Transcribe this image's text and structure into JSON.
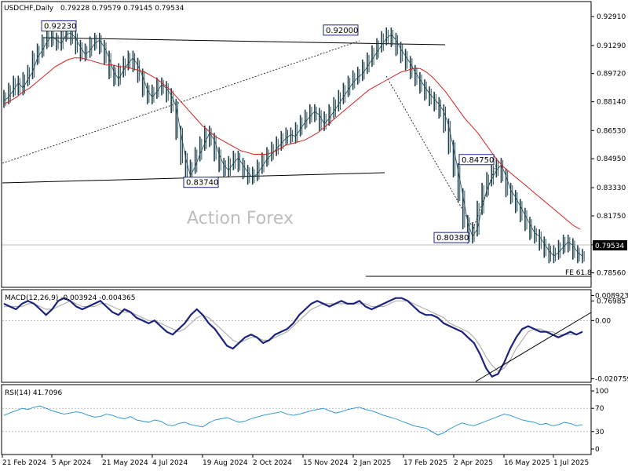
{
  "chart_data": {
    "type": "line",
    "main": {
      "title": "USDCHF,Daily",
      "ohlc": "0.79228 0.79579 0.79145 0.79534",
      "last_price": "0.79534",
      "ylim": [
        0.7775,
        0.9375
      ],
      "y_ticks": [
        "0.92910",
        "0.91290",
        "0.89720",
        "0.88140",
        "0.86530",
        "0.84950",
        "0.83330",
        "0.81750",
        "0.80130",
        "0.78560",
        "0.76985"
      ],
      "watermark": "Action Forex",
      "fe_label": "FE 61.8",
      "fe_level": 0.7808,
      "price_series": [
        0.882,
        0.884,
        0.888,
        0.892,
        0.889,
        0.894,
        0.898,
        0.906,
        0.91,
        0.915,
        0.918,
        0.916,
        0.914,
        0.919,
        0.92,
        0.917,
        0.912,
        0.908,
        0.91,
        0.914,
        0.916,
        0.912,
        0.906,
        0.898,
        0.894,
        0.899,
        0.903,
        0.906,
        0.902,
        0.896,
        0.888,
        0.884,
        0.887,
        0.891,
        0.889,
        0.885,
        0.879,
        0.864,
        0.85,
        0.84,
        0.845,
        0.852,
        0.858,
        0.864,
        0.86,
        0.852,
        0.846,
        0.843,
        0.847,
        0.85,
        0.846,
        0.842,
        0.839,
        0.841,
        0.845,
        0.849,
        0.852,
        0.855,
        0.858,
        0.861,
        0.863,
        0.862,
        0.866,
        0.87,
        0.873,
        0.876,
        0.874,
        0.869,
        0.872,
        0.876,
        0.88,
        0.884,
        0.888,
        0.892,
        0.895,
        0.897,
        0.901,
        0.905,
        0.909,
        0.913,
        0.917,
        0.919,
        0.916,
        0.911,
        0.907,
        0.903,
        0.898,
        0.894,
        0.89,
        0.886,
        0.883,
        0.88,
        0.876,
        0.868,
        0.856,
        0.843,
        0.829,
        0.814,
        0.806,
        0.81,
        0.822,
        0.832,
        0.838,
        0.843,
        0.846,
        0.84,
        0.832,
        0.828,
        0.823,
        0.818,
        0.813,
        0.808,
        0.806,
        0.802,
        0.798,
        0.795,
        0.797,
        0.8,
        0.803,
        0.801,
        0.797,
        0.795
      ],
      "ma_series": [
        0.88,
        0.882,
        0.884,
        0.887,
        0.889,
        0.892,
        0.895,
        0.898,
        0.901,
        0.903,
        0.905,
        0.906,
        0.906,
        0.905,
        0.904,
        0.903,
        0.902,
        0.902,
        0.901,
        0.901,
        0.9,
        0.899,
        0.898,
        0.896,
        0.894,
        0.891,
        0.888,
        0.884,
        0.88,
        0.876,
        0.872,
        0.868,
        0.865,
        0.862,
        0.86,
        0.858,
        0.856,
        0.854,
        0.853,
        0.852,
        0.852,
        0.852,
        0.853,
        0.855,
        0.857,
        0.858,
        0.859,
        0.86,
        0.862,
        0.864,
        0.867,
        0.87,
        0.873,
        0.876,
        0.879,
        0.882,
        0.885,
        0.888,
        0.89,
        0.892,
        0.894,
        0.896,
        0.898,
        0.899,
        0.9,
        0.9,
        0.898,
        0.895,
        0.891,
        0.887,
        0.882,
        0.877,
        0.872,
        0.868,
        0.864,
        0.859,
        0.854,
        0.849,
        0.845,
        0.842,
        0.839,
        0.836,
        0.833,
        0.83,
        0.827,
        0.824,
        0.821,
        0.818,
        0.815,
        0.812,
        0.81
      ],
      "annotations": [
        {
          "text": "0.92230",
          "value": 0.9223
        },
        {
          "text": "0.92000",
          "value": 0.92
        },
        {
          "text": "0.83740",
          "value": 0.8374
        },
        {
          "text": "0.84750",
          "value": 0.8475
        },
        {
          "text": "0.80380",
          "value": 0.8038
        }
      ]
    },
    "macd": {
      "title": "MACD(12,26,9) -0.003924 -0.004365",
      "ylim": [
        -0.022,
        0.011
      ],
      "y_ticks": [
        "0.008923",
        "0.00",
        "-0.020759"
      ],
      "zero_line": 0.0,
      "macd_series": [
        0.006,
        0.005,
        0.004,
        0.006,
        0.007,
        0.006,
        0.004,
        0.002,
        0.004,
        0.007,
        0.008,
        0.007,
        0.005,
        0.004,
        0.005,
        0.006,
        0.007,
        0.005,
        0.003,
        0.002,
        0.004,
        0.003,
        0.001,
        0.0,
        -0.001,
        0.0,
        -0.002,
        -0.004,
        -0.005,
        -0.003,
        -0.001,
        0.002,
        0.004,
        0.002,
        -0.001,
        -0.003,
        -0.006,
        -0.009,
        -0.01,
        -0.008,
        -0.006,
        -0.005,
        -0.006,
        -0.008,
        -0.007,
        -0.005,
        -0.004,
        -0.003,
        -0.001,
        0.002,
        0.004,
        0.006,
        0.007,
        0.006,
        0.005,
        0.006,
        0.007,
        0.006,
        0.006,
        0.007,
        0.005,
        0.004,
        0.005,
        0.006,
        0.007,
        0.008,
        0.008,
        0.007,
        0.005,
        0.003,
        0.002,
        0.002,
        0.001,
        -0.001,
        -0.002,
        -0.003,
        -0.004,
        -0.006,
        -0.008,
        -0.012,
        -0.017,
        -0.02,
        -0.019,
        -0.015,
        -0.01,
        -0.006,
        -0.003,
        -0.002,
        -0.003,
        -0.004,
        -0.004,
        -0.005,
        -0.006,
        -0.005,
        -0.004,
        -0.005,
        -0.004
      ],
      "signal_series": [
        0.005,
        0.005,
        0.005,
        0.005,
        0.006,
        0.006,
        0.005,
        0.004,
        0.004,
        0.005,
        0.006,
        0.007,
        0.006,
        0.005,
        0.005,
        0.005,
        0.006,
        0.006,
        0.005,
        0.004,
        0.003,
        0.003,
        0.002,
        0.001,
        0.0,
        0.0,
        -0.001,
        -0.002,
        -0.003,
        -0.004,
        -0.003,
        -0.001,
        0.001,
        0.002,
        0.001,
        -0.001,
        -0.003,
        -0.005,
        -0.007,
        -0.008,
        -0.007,
        -0.006,
        -0.006,
        -0.007,
        -0.007,
        -0.006,
        -0.005,
        -0.004,
        -0.002,
        0.0,
        0.002,
        0.004,
        0.005,
        0.006,
        0.006,
        0.006,
        0.006,
        0.006,
        0.006,
        0.006,
        0.006,
        0.005,
        0.005,
        0.005,
        0.006,
        0.007,
        0.007,
        0.007,
        0.006,
        0.005,
        0.004,
        0.003,
        0.002,
        0.001,
        -0.001,
        -0.002,
        -0.003,
        -0.004,
        -0.006,
        -0.009,
        -0.013,
        -0.016,
        -0.018,
        -0.017,
        -0.014,
        -0.01,
        -0.007,
        -0.004,
        -0.003,
        -0.003,
        -0.004,
        -0.004,
        -0.005,
        -0.005,
        -0.005,
        -0.005,
        -0.004
      ]
    },
    "rsi": {
      "title": "RSI(14) 41.7096",
      "ylim": [
        0,
        100
      ],
      "y_ticks": [
        100,
        70,
        30,
        0
      ],
      "levels": [
        70,
        30
      ],
      "series": [
        58,
        62,
        66,
        70,
        68,
        72,
        74,
        70,
        66,
        63,
        60,
        62,
        64,
        62,
        58,
        55,
        56,
        60,
        58,
        54,
        52,
        56,
        50,
        48,
        46,
        50,
        48,
        42,
        40,
        44,
        46,
        42,
        40,
        38,
        45,
        50,
        52,
        54,
        50,
        46,
        48,
        52,
        55,
        58,
        60,
        62,
        64,
        60,
        58,
        60,
        63,
        66,
        68,
        70,
        66,
        62,
        64,
        68,
        70,
        72,
        68,
        66,
        62,
        58,
        55,
        52,
        48,
        44,
        40,
        38,
        36,
        30,
        24,
        28,
        35,
        40,
        45,
        42,
        40,
        44,
        48,
        52,
        56,
        60,
        58,
        54,
        50,
        48,
        46,
        42,
        44,
        40,
        42,
        46,
        44,
        40,
        42
      ]
    },
    "x_axis": {
      "labels": [
        "21 Feb 2024",
        "5 Apr 2024",
        "21 May 2024",
        "4 Jul 2024",
        "19 Aug 2024",
        "2 Oct 2024",
        "15 Nov 2024",
        "2 Jan 2025",
        "17 Feb 2025",
        "2 Apr 2025",
        "16 May 2025",
        "1 Jul 2025"
      ]
    }
  }
}
